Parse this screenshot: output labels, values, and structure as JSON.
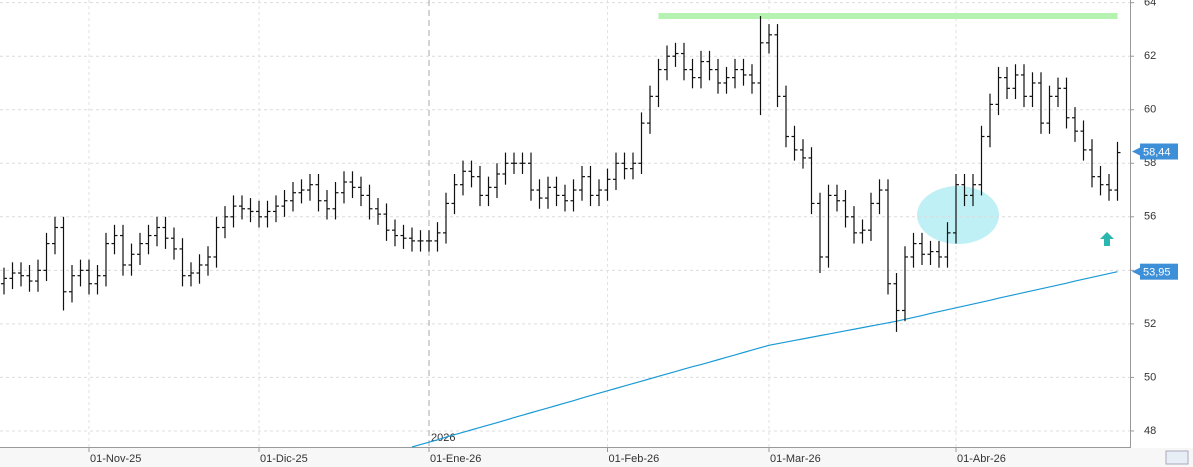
{
  "chart_data": {
    "type": "ohlc",
    "categories": [
      null,
      null,
      null,
      null,
      null,
      null,
      null,
      null,
      null,
      null,
      "01-Nov-25",
      null,
      null,
      null,
      null,
      null,
      null,
      null,
      null,
      null,
      null,
      null,
      null,
      null,
      null,
      null,
      null,
      null,
      null,
      null,
      "01-Dic-25",
      null,
      null,
      null,
      null,
      null,
      null,
      null,
      null,
      null,
      null,
      null,
      null,
      null,
      null,
      null,
      null,
      null,
      null,
      null,
      "01-Ene-26",
      null,
      null,
      null,
      null,
      null,
      null,
      null,
      null,
      null,
      null,
      null,
      null,
      null,
      null,
      null,
      null,
      null,
      null,
      null,
      null,
      "01-Feb-26",
      null,
      null,
      null,
      null,
      null,
      null,
      null,
      null,
      null,
      null,
      null,
      null,
      null,
      null,
      null,
      null,
      null,
      null,
      "01-Mar-26",
      null,
      null,
      null,
      null,
      null,
      null,
      null,
      null,
      null,
      null,
      null,
      null,
      null,
      null,
      null,
      null,
      null,
      null,
      null,
      null,
      null,
      "01-Abr-26",
      null,
      null,
      null,
      null,
      null,
      null,
      null,
      null,
      null,
      null,
      null,
      null,
      null,
      null,
      null,
      null,
      null,
      null,
      null
    ],
    "open": [
      53.5,
      53.7,
      53.9,
      53.8,
      53.6,
      54.0,
      55.0,
      55.6,
      53.2,
      53.8,
      54.0,
      53.5,
      53.8,
      55.0,
      55.3,
      54.2,
      54.6,
      55.0,
      55.3,
      55.6,
      55.2,
      54.8,
      53.8,
      53.9,
      54.2,
      54.5,
      55.6,
      56.0,
      56.4,
      56.3,
      56.2,
      56.0,
      56.2,
      56.4,
      56.6,
      56.9,
      57.0,
      57.2,
      56.6,
      56.3,
      56.9,
      57.3,
      57.1,
      56.8,
      56.3,
      56.1,
      55.5,
      55.3,
      55.2,
      55.1,
      55.1,
      55.1,
      55.4,
      56.5,
      57.2,
      57.7,
      57.5,
      56.8,
      57.1,
      57.6,
      58.0,
      58.0,
      58.0,
      57.0,
      56.7,
      57.1,
      56.8,
      56.6,
      57.0,
      57.5,
      56.8,
      57.0,
      57.4,
      58.0,
      57.8,
      58.0,
      59.5,
      60.5,
      61.5,
      62.0,
      62.1,
      61.5,
      61.2,
      61.8,
      61.5,
      61.0,
      61.2,
      61.5,
      61.3,
      61.0,
      62.5,
      62.8,
      60.5,
      59.0,
      58.5,
      58.2,
      56.5,
      54.5,
      56.8,
      56.6,
      56.0,
      55.4,
      55.5,
      56.5,
      57.0,
      53.5,
      52.5,
      54.5,
      55.0,
      54.6,
      54.7,
      54.5,
      55.4,
      57.2,
      56.8,
      57.2,
      59.0,
      60.2,
      61.2,
      60.8,
      61.3,
      60.5,
      61.0,
      59.5,
      60.5,
      60.8,
      59.7,
      59.2,
      58.5,
      57.5,
      57.2,
      57.0
    ],
    "high": [
      54.1,
      54.3,
      54.3,
      54.2,
      54.4,
      55.4,
      56.0,
      56.0,
      54.2,
      54.4,
      54.4,
      54.2,
      55.4,
      55.7,
      55.7,
      55.0,
      55.4,
      55.7,
      56.0,
      56.0,
      55.6,
      55.2,
      54.3,
      54.6,
      54.9,
      56.0,
      56.4,
      56.8,
      56.8,
      56.7,
      56.6,
      56.6,
      56.8,
      57.0,
      57.3,
      57.4,
      57.6,
      57.6,
      57.0,
      57.3,
      57.7,
      57.7,
      57.5,
      57.2,
      56.7,
      56.5,
      55.9,
      55.7,
      55.6,
      55.5,
      55.5,
      55.8,
      56.9,
      57.6,
      58.1,
      58.1,
      57.9,
      57.5,
      58.0,
      58.4,
      58.4,
      58.4,
      58.4,
      57.4,
      57.5,
      57.5,
      57.2,
      57.4,
      57.9,
      57.9,
      57.4,
      57.8,
      58.4,
      58.4,
      58.4,
      59.9,
      60.9,
      61.9,
      62.4,
      62.5,
      62.5,
      61.9,
      62.2,
      62.2,
      61.9,
      61.6,
      61.9,
      61.9,
      61.7,
      63.5,
      63.2,
      63.2,
      60.9,
      59.4,
      58.9,
      58.6,
      56.9,
      57.2,
      57.2,
      57.0,
      56.4,
      55.9,
      56.9,
      57.4,
      57.4,
      53.9,
      54.9,
      55.4,
      55.4,
      55.1,
      55.1,
      55.8,
      57.6,
      57.6,
      57.6,
      59.4,
      60.6,
      61.6,
      61.6,
      61.7,
      61.7,
      61.4,
      61.4,
      60.9,
      61.2,
      61.2,
      60.1,
      59.6,
      58.9,
      57.9,
      57.6,
      58.8
    ],
    "low": [
      53.1,
      53.3,
      53.4,
      53.2,
      53.2,
      53.6,
      54.6,
      52.5,
      52.8,
      53.4,
      53.1,
      53.1,
      53.4,
      54.6,
      53.8,
      53.8,
      54.2,
      54.6,
      54.9,
      54.8,
      54.4,
      53.4,
      53.4,
      53.5,
      53.8,
      54.1,
      55.2,
      55.6,
      55.9,
      55.8,
      55.6,
      55.6,
      55.8,
      56.0,
      56.2,
      56.5,
      56.6,
      56.2,
      55.9,
      55.9,
      56.5,
      56.7,
      56.4,
      55.9,
      55.7,
      55.1,
      54.9,
      54.8,
      54.7,
      54.7,
      54.7,
      54.7,
      55.0,
      56.1,
      56.8,
      57.1,
      56.4,
      56.4,
      56.7,
      57.2,
      57.6,
      57.6,
      56.6,
      56.3,
      56.3,
      56.4,
      56.2,
      56.2,
      56.6,
      56.4,
      56.4,
      56.6,
      57.0,
      57.4,
      57.4,
      57.6,
      59.1,
      60.1,
      61.1,
      61.6,
      61.1,
      60.8,
      60.8,
      61.1,
      60.6,
      60.6,
      60.8,
      60.9,
      60.6,
      59.8,
      62.1,
      60.1,
      58.6,
      58.1,
      57.8,
      56.1,
      53.9,
      54.1,
      56.2,
      55.6,
      55.0,
      55.0,
      55.1,
      56.1,
      53.1,
      51.7,
      52.1,
      54.1,
      54.2,
      54.2,
      54.1,
      54.1,
      55.0,
      56.4,
      56.4,
      56.8,
      58.6,
      59.8,
      60.4,
      60.4,
      60.1,
      60.1,
      59.1,
      59.1,
      60.1,
      59.3,
      58.8,
      58.1,
      57.1,
      56.8,
      56.6,
      56.6
    ],
    "close": [
      53.7,
      53.9,
      53.8,
      53.6,
      54.0,
      55.0,
      55.6,
      53.2,
      53.8,
      54.0,
      53.5,
      53.8,
      55.0,
      55.3,
      54.2,
      54.6,
      55.0,
      55.3,
      55.6,
      55.2,
      54.8,
      53.8,
      53.9,
      54.2,
      54.5,
      55.6,
      56.0,
      56.4,
      56.3,
      56.2,
      56.0,
      56.2,
      56.4,
      56.6,
      56.9,
      57.0,
      57.2,
      56.6,
      56.3,
      56.9,
      57.3,
      57.1,
      56.8,
      56.3,
      56.1,
      55.5,
      55.3,
      55.2,
      55.1,
      55.1,
      55.1,
      55.4,
      56.5,
      57.2,
      57.7,
      57.5,
      56.8,
      57.1,
      57.6,
      58.0,
      58.0,
      58.0,
      57.0,
      56.7,
      57.1,
      56.8,
      56.6,
      57.0,
      57.5,
      56.8,
      57.0,
      57.4,
      58.0,
      57.8,
      58.0,
      59.5,
      60.5,
      61.5,
      62.0,
      62.1,
      61.5,
      61.2,
      61.8,
      61.5,
      61.0,
      61.2,
      61.5,
      61.3,
      61.0,
      62.5,
      62.8,
      60.5,
      59.0,
      58.5,
      58.2,
      56.5,
      54.5,
      56.8,
      56.6,
      56.0,
      55.4,
      55.5,
      56.5,
      57.0,
      53.5,
      52.5,
      54.5,
      55.0,
      54.6,
      54.7,
      54.5,
      55.4,
      57.2,
      56.8,
      57.2,
      59.0,
      60.2,
      61.2,
      60.8,
      61.3,
      60.5,
      61.0,
      59.5,
      60.5,
      60.8,
      59.7,
      59.2,
      58.5,
      57.5,
      57.2,
      57.0,
      58.4
    ],
    "color": "#111111",
    "moving_average": {
      "color": "#1a9ad6",
      "values": [
        null,
        null,
        null,
        null,
        null,
        null,
        null,
        null,
        null,
        null,
        null,
        null,
        null,
        null,
        null,
        null,
        null,
        null,
        null,
        null,
        null,
        null,
        null,
        null,
        null,
        null,
        null,
        null,
        null,
        null,
        null,
        null,
        null,
        null,
        null,
        null,
        null,
        null,
        null,
        null,
        null,
        null,
        null,
        null,
        null,
        null,
        null,
        null,
        47.4,
        47.49,
        47.58,
        47.67,
        47.77,
        47.86,
        47.95,
        48.04,
        48.13,
        48.22,
        48.31,
        48.4,
        48.5,
        48.59,
        48.68,
        48.77,
        48.86,
        48.95,
        49.04,
        49.13,
        49.23,
        49.32,
        49.41,
        49.5,
        49.59,
        49.68,
        49.77,
        49.86,
        49.95,
        50.04,
        50.13,
        50.22,
        50.31,
        50.4,
        50.48,
        50.57,
        50.66,
        50.75,
        50.84,
        50.93,
        51.02,
        51.11,
        51.2,
        51.26,
        51.32,
        51.38,
        51.44,
        51.5,
        51.56,
        51.62,
        51.68,
        51.74,
        51.8,
        51.86,
        51.92,
        51.98,
        52.04,
        52.1,
        52.17,
        52.24,
        52.31,
        52.39,
        52.46,
        52.53,
        52.6,
        52.67,
        52.74,
        52.81,
        52.88,
        52.96,
        53.03,
        53.1,
        53.17,
        53.24,
        53.31,
        53.38,
        53.45,
        53.52,
        53.6,
        53.67,
        53.74,
        53.81,
        53.88,
        53.95
      ]
    },
    "last_price": {
      "value": 58.44,
      "label": "58,44"
    },
    "ma_last": {
      "value": 53.95,
      "label": "53,95"
    },
    "resistance": {
      "value": 63.5,
      "color": "#b6f2b0",
      "from": 77,
      "to": 131
    },
    "year_marker": {
      "label": "2026",
      "at": 50
    },
    "ylim": [
      47.4,
      64.1
    ],
    "yticks": [
      48,
      50,
      52,
      54,
      56,
      58,
      60,
      62,
      64
    ],
    "grid": true
  }
}
